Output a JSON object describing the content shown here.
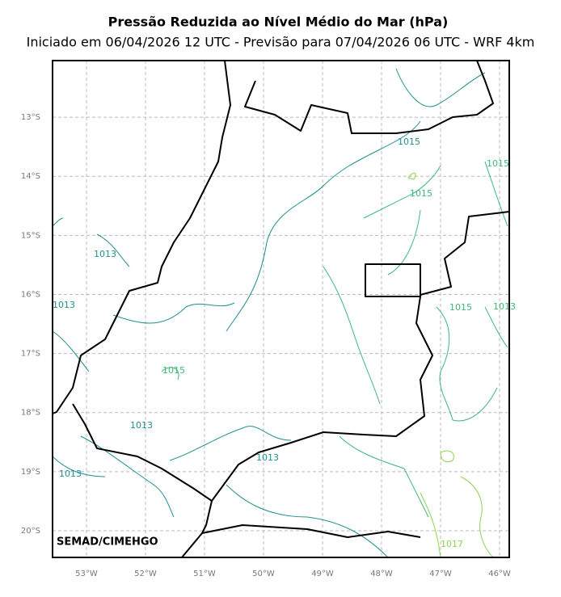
{
  "map": {
    "title": "Pressão Reduzida ao Nível Médio do Mar (hPa)",
    "subtitle": "Iniciado em 06/04/2026 12 UTC - Previsão para 07/04/2026 06 UTC - WRF 4km",
    "credit": "SEMAD/CIMEHGO",
    "xlim": [
      -53.575,
      -45.836
    ],
    "ylim": [
      -20.452,
      -12.041
    ],
    "xticks": [
      {
        "value": -53,
        "label": "53°W"
      },
      {
        "value": -52,
        "label": "52°W"
      },
      {
        "value": -51,
        "label": "51°W"
      },
      {
        "value": -50,
        "label": "50°W"
      },
      {
        "value": -49,
        "label": "49°W"
      },
      {
        "value": -48,
        "label": "48°W"
      },
      {
        "value": -47,
        "label": "47°W"
      },
      {
        "value": -46,
        "label": "46°W"
      }
    ],
    "yticks": [
      {
        "value": -13,
        "label": "13°S"
      },
      {
        "value": -14,
        "label": "14°S"
      },
      {
        "value": -15,
        "label": "15°S"
      },
      {
        "value": -16,
        "label": "16°S"
      },
      {
        "value": -17,
        "label": "17°S"
      },
      {
        "value": -18,
        "label": "18°S"
      },
      {
        "value": -19,
        "label": "19°S"
      },
      {
        "value": -20,
        "label": "20°S"
      }
    ],
    "grid": true,
    "contour_labels": [
      "1015",
      "1015",
      "1015",
      "1013",
      "1013",
      "1015",
      "1013",
      "1015",
      "1013",
      "1013",
      "1013",
      "1017"
    ]
  }
}
